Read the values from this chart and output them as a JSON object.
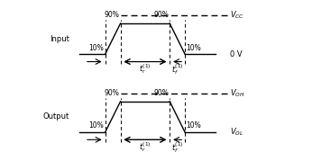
{
  "bg_color": "#ffffff",
  "line_color": "#000000",
  "fig_width": 3.46,
  "fig_height": 1.69,
  "dpi": 100
}
